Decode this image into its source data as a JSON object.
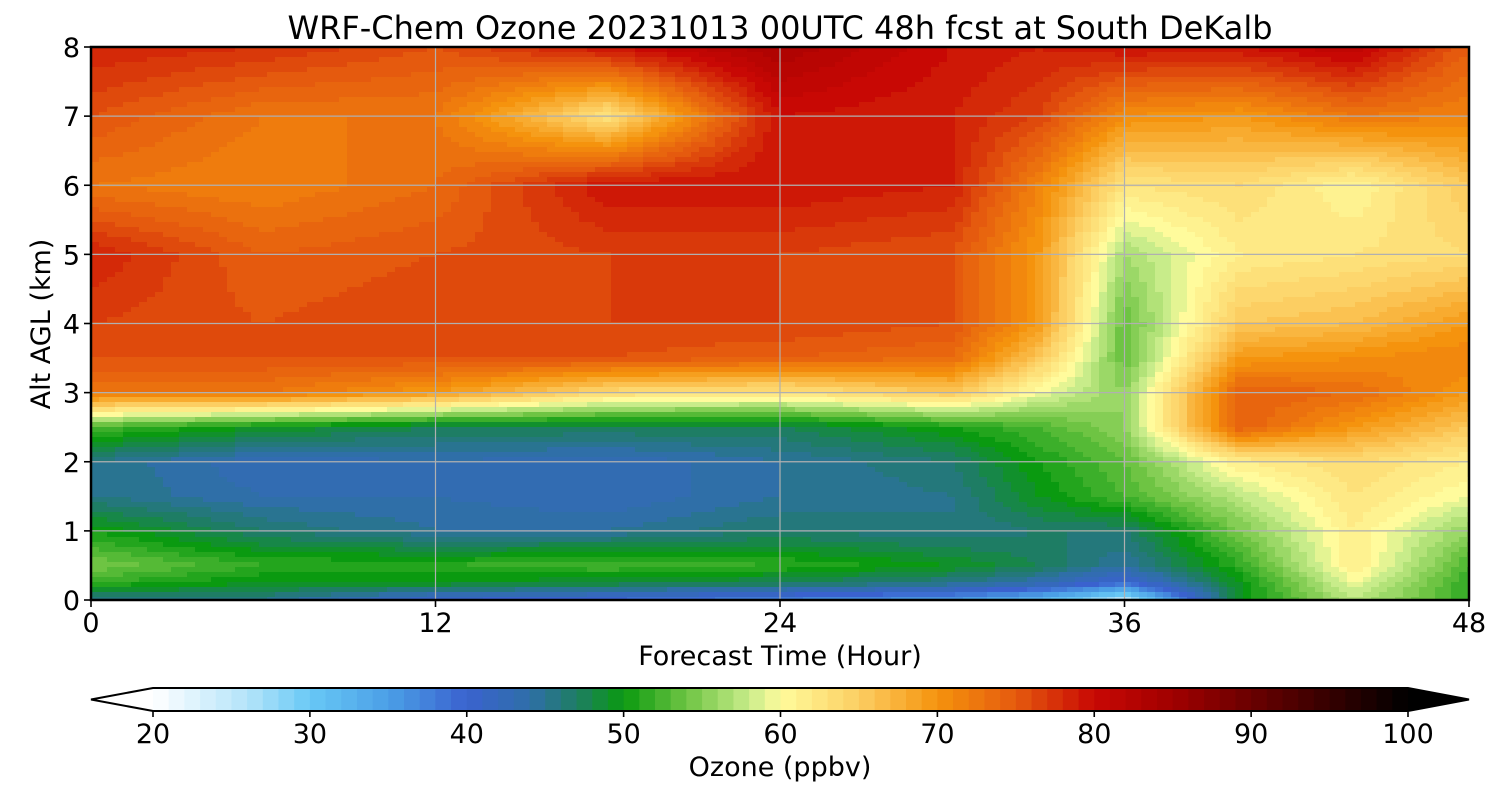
{
  "chart_data": {
    "type": "heatmap",
    "title": "WRF-Chem Ozone  20231013 00UTC 48h fcst at South DeKalb",
    "xlabel": "Forecast Time (Hour)",
    "ylabel": "Alt AGL (km)",
    "xlim": [
      0,
      48
    ],
    "ylim": [
      0,
      8
    ],
    "xticks": [
      "0",
      "12",
      "24",
      "36",
      "48"
    ],
    "yticks": [
      "0",
      "1",
      "2",
      "3",
      "4",
      "5",
      "6",
      "7",
      "8"
    ],
    "grid": true,
    "colorbar": {
      "label": "Ozone  (ppbv)",
      "min": 20,
      "max": 100,
      "extend": "both",
      "ticks": [
        "20",
        "30",
        "40",
        "50",
        "60",
        "70",
        "80",
        "90",
        "100"
      ],
      "stops": [
        {
          "v": 20,
          "c": "#ffffff"
        },
        {
          "v": 26,
          "c": "#b4e4fa"
        },
        {
          "v": 30,
          "c": "#68c8f5"
        },
        {
          "v": 35,
          "c": "#4b9fe6"
        },
        {
          "v": 40,
          "c": "#3a62cf"
        },
        {
          "v": 44,
          "c": "#2f6fa8"
        },
        {
          "v": 47,
          "c": "#1e7d64"
        },
        {
          "v": 50,
          "c": "#0a9a10"
        },
        {
          "v": 54,
          "c": "#6ec443"
        },
        {
          "v": 58,
          "c": "#c8ec8a"
        },
        {
          "v": 60,
          "c": "#fffb9c"
        },
        {
          "v": 65,
          "c": "#fcce62"
        },
        {
          "v": 70,
          "c": "#f5930d"
        },
        {
          "v": 75,
          "c": "#e55a0e"
        },
        {
          "v": 80,
          "c": "#c80804"
        },
        {
          "v": 85,
          "c": "#a00000"
        },
        {
          "v": 90,
          "c": "#6a0000"
        },
        {
          "v": 95,
          "c": "#350000"
        },
        {
          "v": 100,
          "c": "#000000"
        }
      ]
    },
    "x": [
      0,
      6,
      12,
      18,
      24,
      30,
      33,
      36,
      40,
      44,
      48
    ],
    "y": [
      0,
      0.25,
      0.5,
      1,
      1.5,
      2,
      2.5,
      3,
      3.5,
      4,
      5,
      6,
      7,
      8
    ],
    "z": [
      [
        46,
        46,
        41,
        40,
        38,
        36,
        33,
        26,
        50,
        58,
        52
      ],
      [
        52,
        50,
        50,
        49,
        48,
        46,
        44,
        40,
        50,
        60,
        52
      ],
      [
        55,
        52,
        52,
        53,
        52,
        50,
        48,
        45,
        52,
        62,
        53
      ],
      [
        51,
        47,
        45,
        45,
        47,
        46,
        47,
        47,
        55,
        62,
        56
      ],
      [
        46,
        44,
        44,
        43,
        45,
        46,
        50,
        53,
        58,
        63,
        60
      ],
      [
        46,
        43,
        44,
        43,
        45,
        47,
        51,
        54,
        62,
        64,
        62
      ],
      [
        53,
        50,
        48,
        48,
        48,
        51,
        53,
        56,
        75,
        70,
        66
      ],
      [
        73,
        73,
        70,
        64,
        63,
        66,
        60,
        56,
        75,
        74,
        70
      ],
      [
        76,
        76,
        76,
        76,
        75,
        74,
        66,
        54,
        70,
        71,
        72
      ],
      [
        77,
        76,
        77,
        77,
        77,
        76,
        70,
        54,
        66,
        67,
        70
      ],
      [
        79,
        75,
        76,
        77,
        77,
        76,
        70,
        57,
        62,
        63,
        64
      ],
      [
        73,
        72,
        74,
        80,
        80,
        79,
        72,
        63,
        64,
        61,
        66
      ],
      [
        76,
        73,
        73,
        63,
        80,
        79,
        77,
        71,
        70,
        73,
        72
      ],
      [
        79,
        78,
        76,
        80,
        84,
        80,
        79,
        80,
        80,
        82,
        75
      ]
    ]
  }
}
